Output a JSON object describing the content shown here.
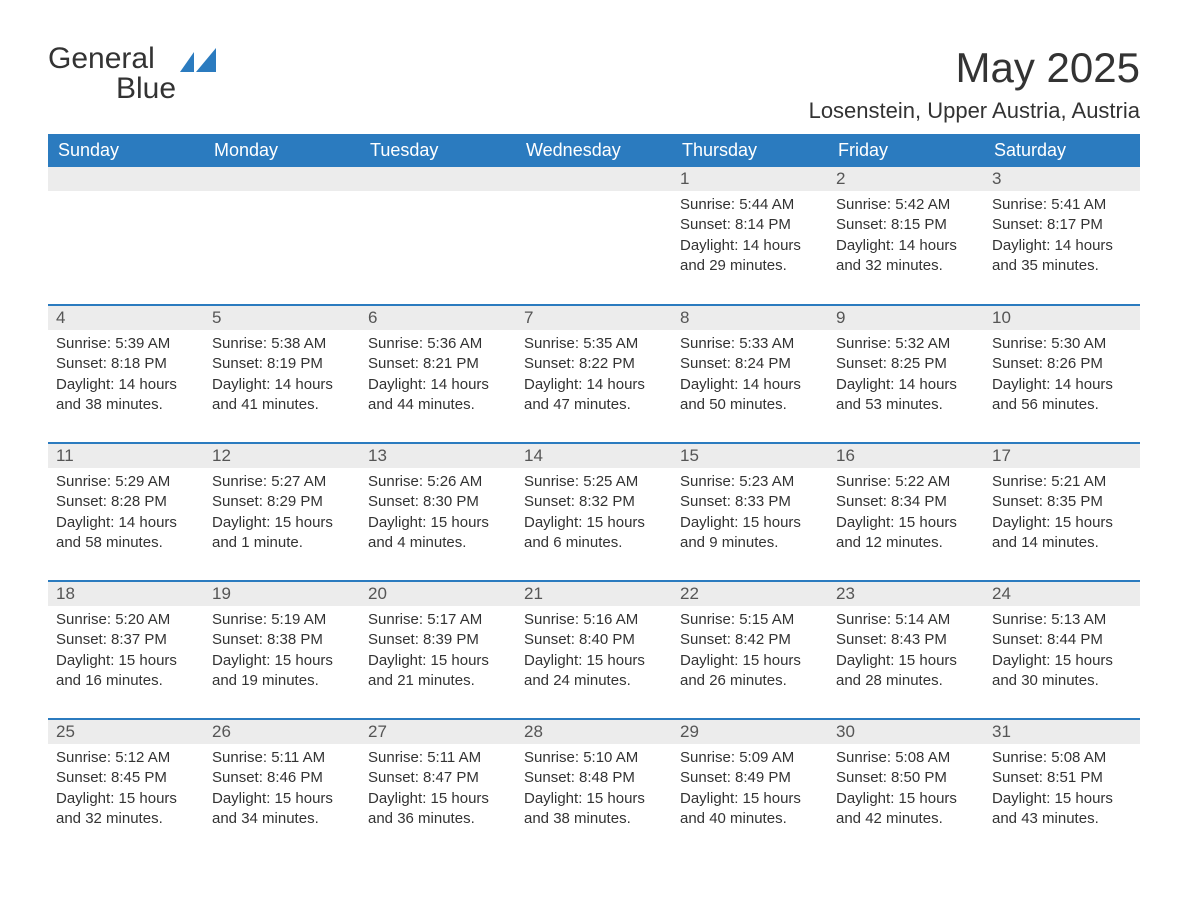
{
  "brand": {
    "name_a": "General",
    "name_b": "Blue",
    "icon_color": "#2b7bbf"
  },
  "title": {
    "month": "May 2025",
    "location": "Losenstein, Upper Austria, Austria"
  },
  "colors": {
    "header_bg": "#2b7bbf",
    "header_text": "#ffffff",
    "daynum_bg": "#ececec",
    "daynum_text": "#555555",
    "body_text": "#333333",
    "row_divider": "#2b7bbf",
    "page_bg": "#ffffff"
  },
  "typography": {
    "base_font": "Arial",
    "title_size_pt": 32,
    "location_size_pt": 17,
    "header_size_pt": 14,
    "cell_size_pt": 11
  },
  "calendar": {
    "type": "table",
    "columns": [
      "Sunday",
      "Monday",
      "Tuesday",
      "Wednesday",
      "Thursday",
      "Friday",
      "Saturday"
    ],
    "first_weekday_index": 4,
    "days": [
      {
        "n": 1,
        "sunrise": "5:44 AM",
        "sunset": "8:14 PM",
        "daylight": "14 hours and 29 minutes."
      },
      {
        "n": 2,
        "sunrise": "5:42 AM",
        "sunset": "8:15 PM",
        "daylight": "14 hours and 32 minutes."
      },
      {
        "n": 3,
        "sunrise": "5:41 AM",
        "sunset": "8:17 PM",
        "daylight": "14 hours and 35 minutes."
      },
      {
        "n": 4,
        "sunrise": "5:39 AM",
        "sunset": "8:18 PM",
        "daylight": "14 hours and 38 minutes."
      },
      {
        "n": 5,
        "sunrise": "5:38 AM",
        "sunset": "8:19 PM",
        "daylight": "14 hours and 41 minutes."
      },
      {
        "n": 6,
        "sunrise": "5:36 AM",
        "sunset": "8:21 PM",
        "daylight": "14 hours and 44 minutes."
      },
      {
        "n": 7,
        "sunrise": "5:35 AM",
        "sunset": "8:22 PM",
        "daylight": "14 hours and 47 minutes."
      },
      {
        "n": 8,
        "sunrise": "5:33 AM",
        "sunset": "8:24 PM",
        "daylight": "14 hours and 50 minutes."
      },
      {
        "n": 9,
        "sunrise": "5:32 AM",
        "sunset": "8:25 PM",
        "daylight": "14 hours and 53 minutes."
      },
      {
        "n": 10,
        "sunrise": "5:30 AM",
        "sunset": "8:26 PM",
        "daylight": "14 hours and 56 minutes."
      },
      {
        "n": 11,
        "sunrise": "5:29 AM",
        "sunset": "8:28 PM",
        "daylight": "14 hours and 58 minutes."
      },
      {
        "n": 12,
        "sunrise": "5:27 AM",
        "sunset": "8:29 PM",
        "daylight": "15 hours and 1 minute."
      },
      {
        "n": 13,
        "sunrise": "5:26 AM",
        "sunset": "8:30 PM",
        "daylight": "15 hours and 4 minutes."
      },
      {
        "n": 14,
        "sunrise": "5:25 AM",
        "sunset": "8:32 PM",
        "daylight": "15 hours and 6 minutes."
      },
      {
        "n": 15,
        "sunrise": "5:23 AM",
        "sunset": "8:33 PM",
        "daylight": "15 hours and 9 minutes."
      },
      {
        "n": 16,
        "sunrise": "5:22 AM",
        "sunset": "8:34 PM",
        "daylight": "15 hours and 12 minutes."
      },
      {
        "n": 17,
        "sunrise": "5:21 AM",
        "sunset": "8:35 PM",
        "daylight": "15 hours and 14 minutes."
      },
      {
        "n": 18,
        "sunrise": "5:20 AM",
        "sunset": "8:37 PM",
        "daylight": "15 hours and 16 minutes."
      },
      {
        "n": 19,
        "sunrise": "5:19 AM",
        "sunset": "8:38 PM",
        "daylight": "15 hours and 19 minutes."
      },
      {
        "n": 20,
        "sunrise": "5:17 AM",
        "sunset": "8:39 PM",
        "daylight": "15 hours and 21 minutes."
      },
      {
        "n": 21,
        "sunrise": "5:16 AM",
        "sunset": "8:40 PM",
        "daylight": "15 hours and 24 minutes."
      },
      {
        "n": 22,
        "sunrise": "5:15 AM",
        "sunset": "8:42 PM",
        "daylight": "15 hours and 26 minutes."
      },
      {
        "n": 23,
        "sunrise": "5:14 AM",
        "sunset": "8:43 PM",
        "daylight": "15 hours and 28 minutes."
      },
      {
        "n": 24,
        "sunrise": "5:13 AM",
        "sunset": "8:44 PM",
        "daylight": "15 hours and 30 minutes."
      },
      {
        "n": 25,
        "sunrise": "5:12 AM",
        "sunset": "8:45 PM",
        "daylight": "15 hours and 32 minutes."
      },
      {
        "n": 26,
        "sunrise": "5:11 AM",
        "sunset": "8:46 PM",
        "daylight": "15 hours and 34 minutes."
      },
      {
        "n": 27,
        "sunrise": "5:11 AM",
        "sunset": "8:47 PM",
        "daylight": "15 hours and 36 minutes."
      },
      {
        "n": 28,
        "sunrise": "5:10 AM",
        "sunset": "8:48 PM",
        "daylight": "15 hours and 38 minutes."
      },
      {
        "n": 29,
        "sunrise": "5:09 AM",
        "sunset": "8:49 PM",
        "daylight": "15 hours and 40 minutes."
      },
      {
        "n": 30,
        "sunrise": "5:08 AM",
        "sunset": "8:50 PM",
        "daylight": "15 hours and 42 minutes."
      },
      {
        "n": 31,
        "sunrise": "5:08 AM",
        "sunset": "8:51 PM",
        "daylight": "15 hours and 43 minutes."
      }
    ],
    "labels": {
      "sunrise": "Sunrise:",
      "sunset": "Sunset:",
      "daylight": "Daylight:"
    }
  }
}
